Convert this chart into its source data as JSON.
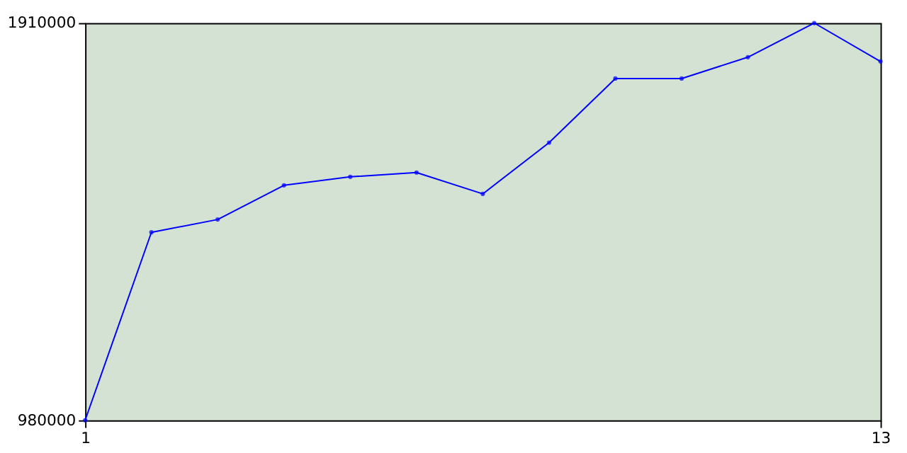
{
  "chart_data": {
    "type": "line",
    "x": [
      1,
      2,
      3,
      4,
      5,
      6,
      7,
      8,
      9,
      10,
      11,
      12,
      13
    ],
    "series": [
      {
        "color": "#0000ff",
        "values": [
          980000,
          1420000,
          1450000,
          1530000,
          1550000,
          1560000,
          1510000,
          1630000,
          1780000,
          1780000,
          1830000,
          1910000,
          1820000
        ]
      }
    ],
    "xlim": [
      1,
      13
    ],
    "xticks": [
      1,
      13
    ],
    "ylim": [
      980000,
      1910000
    ],
    "yticks": [
      980000,
      1910000
    ],
    "grid": false,
    "legend": false,
    "marker": "circle",
    "line_style": "solid"
  }
}
